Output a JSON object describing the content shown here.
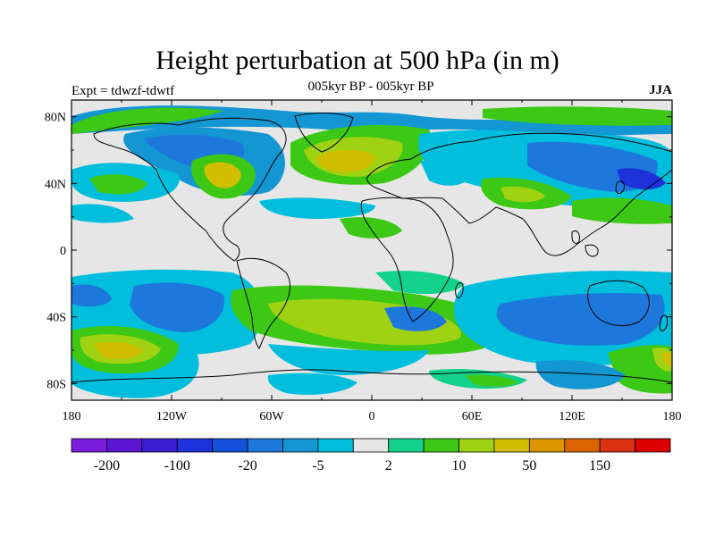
{
  "title": "Height perturbation at 500 hPa (in m)",
  "left_string": "Expt = tdwzf-tdwtf",
  "center_string": "005kyr BP - 005kyr BP",
  "right_string": "JJA",
  "lat_labels": [
    "80N",
    "40N",
    "0",
    "40S",
    "80S"
  ],
  "lon_labels": [
    "180",
    "120W",
    "60W",
    "0",
    "60E",
    "120E",
    "180"
  ],
  "lat_ticks": [
    80,
    40,
    0,
    -40,
    -80
  ],
  "lon_ticks": [
    -180,
    -120,
    -60,
    0,
    60,
    120,
    180
  ],
  "lat_range": [
    -90,
    90
  ],
  "lon_range": [
    -180,
    180
  ],
  "colorbar": {
    "colors": [
      "#7a1fdc",
      "#5a14d2",
      "#3c1ed2",
      "#1e32dc",
      "#1450dc",
      "#1e78dc",
      "#1496d2",
      "#00bedc",
      "#e6e6e6",
      "#14d28c",
      "#3cc814",
      "#a0d214",
      "#d2be00",
      "#dc9600",
      "#dc6400",
      "#dc3214",
      "#dc0000"
    ],
    "labels": [
      {
        "index": 1,
        "text": "-200"
      },
      {
        "index": 3,
        "text": "-100"
      },
      {
        "index": 5,
        "text": "-20"
      },
      {
        "index": 7,
        "text": "-5"
      },
      {
        "index": 9,
        "text": "2"
      },
      {
        "index": 11,
        "text": "10"
      },
      {
        "index": 13,
        "text": "50"
      },
      {
        "index": 15,
        "text": "150"
      }
    ]
  }
}
